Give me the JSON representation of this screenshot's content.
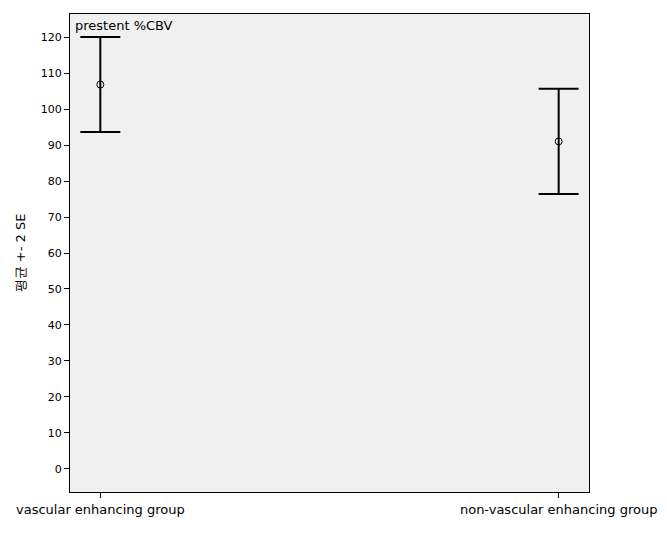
{
  "chart_data": {
    "type": "scatter",
    "title": "prestent %CBV",
    "y_label": "평균 +- 2 SE",
    "categories": [
      "vascular enhancing group",
      "non-vascular enhancing group"
    ],
    "values": [
      106.8,
      91.0
    ],
    "error": [
      13.2,
      14.6
    ],
    "color": "#000000",
    "marker": "circle-open",
    "ylim": [
      -6.4,
      126.4
    ],
    "yticks": [
      0,
      10,
      20,
      30,
      40,
      50,
      60,
      70,
      80,
      90,
      100,
      110,
      120
    ],
    "grid": false
  }
}
